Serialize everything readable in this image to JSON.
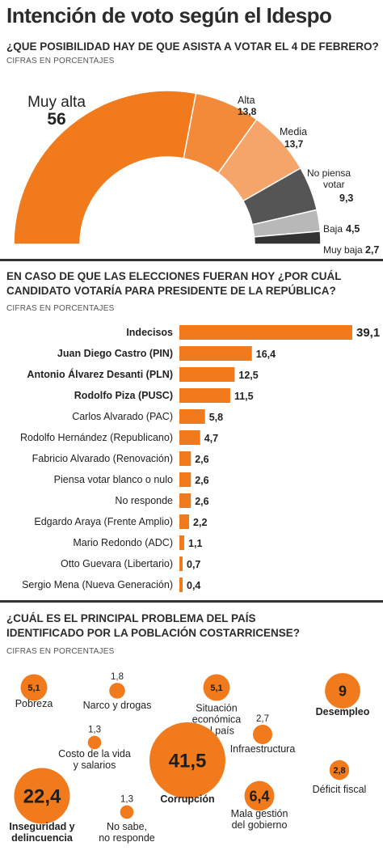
{
  "title": "Intención de voto según el Idespo",
  "colors": {
    "orange": "#f07a1c",
    "orange_mid": "#f28a3a",
    "orange_light": "#f6a56a",
    "gray_dark": "#555555",
    "gray_light": "#b8b8b8",
    "gray_darker": "#333333"
  },
  "section1": {
    "question": "¿QUE POSIBILIDAD HAY DE QUE ASISTA A VOTAR EL 4 DE FEBRERO?",
    "subtitle": "CIFRAS EN PORCENTAJES"
  },
  "section2": {
    "question_line1": "EN CASO DE QUE LAS ELECCIONES FUERAN HOY ¿POR CUÁL",
    "question_line2": "CANDIDATO VOTARÍA PARA PRESIDENTE DE LA REPÚBLICA?",
    "subtitle": "CIFRAS EN PORCENTAJES"
  },
  "section3": {
    "question_line1": "¿CUÁL ES EL PRINCIPAL PROBLEMA DEL PAÍS",
    "question_line2": "IDENTIFICADO POR LA POBLACIÓN COSTARRICENSE?",
    "subtitle": "CIFRAS EN PORCENTAJES"
  },
  "chart_data": [
    {
      "type": "pie",
      "variant": "half-donut",
      "categories": [
        "Muy alta",
        "Alta",
        "Media",
        "No piensa votar",
        "Baja",
        "Muy baja"
      ],
      "values": [
        56,
        13.8,
        13.7,
        9.3,
        4.5,
        2.7
      ],
      "value_labels": [
        "56",
        "13,8",
        "13,7",
        "9,3",
        "4,5",
        "2,7"
      ],
      "colors": [
        "#f07a1c",
        "#f28a3a",
        "#f6a56a",
        "#555555",
        "#b8b8b8",
        "#333333"
      ]
    },
    {
      "type": "bar",
      "orientation": "horizontal",
      "categories": [
        "Indecisos",
        "Juan Diego Castro (PIN)",
        "Antonio Álvarez Desanti (PLN)",
        "Rodolfo Piza (PUSC)",
        "Carlos Alvarado (PAC)",
        "Rodolfo Hernández (Republicano)",
        "Fabricio Alvarado (Renovación)",
        "Piensa votar blanco o nulo",
        "No responde",
        "Edgardo Araya (Frente Amplio)",
        "Mario Redondo (ADC)",
        "Otto Guevara (Libertario)",
        "Sergio Mena (Nueva Generación)"
      ],
      "values": [
        39.1,
        16.4,
        12.5,
        11.5,
        5.8,
        4.7,
        2.6,
        2.6,
        2.6,
        2.2,
        1.1,
        0.7,
        0.4
      ],
      "value_labels": [
        "39,1",
        "16,4",
        "12,5",
        "11,5",
        "5,8",
        "4,7",
        "2,6",
        "2,6",
        "2,6",
        "2,2",
        "1,1",
        "0,7",
        "0,4"
      ],
      "bold_categories": [
        "Indecisos",
        "Juan Diego Castro (PIN)",
        "Antonio Álvarez Desanti (PLN)",
        "Rodolfo Piza (PUSC)"
      ]
    },
    {
      "type": "scatter",
      "variant": "bubble",
      "categories": [
        "Pobreza",
        "Narco y drogas",
        "Situación económica del país",
        "Desempleo",
        "Costo de la vida y salarios",
        "Infraestructura",
        "Corrupción",
        "Déficit fiscal",
        "Inseguridad y delincuencia",
        "No sabe, no responde",
        "Mala gestión del gobierno"
      ],
      "values": [
        5.1,
        1.8,
        5.1,
        9,
        1.3,
        2.7,
        41.5,
        2.8,
        22.4,
        1.3,
        6.4
      ],
      "value_labels": [
        "5,1",
        "1,8",
        "5,1",
        "9",
        "1,3",
        "2,7",
        "41,5",
        "2,8",
        "22,4",
        "1,3",
        "6,4"
      ],
      "label_lines": [
        [
          "Pobreza"
        ],
        [
          "Narco y drogas"
        ],
        [
          "Situación",
          "económica",
          "del país"
        ],
        [
          "Desempleo"
        ],
        [
          "Costo de la vida",
          "y salarios"
        ],
        [
          "Infraestructura"
        ],
        [
          "Corrupción"
        ],
        [
          "Déficit fiscal"
        ],
        [
          "Inseguridad y",
          "delincuencia"
        ],
        [
          "No sabe,",
          "no responde"
        ],
        [
          "Mala gestión",
          "del gobierno"
        ]
      ],
      "bold_categories": [
        "Desempleo",
        "Corrupción",
        "Inseguridad y delincuencia"
      ]
    }
  ]
}
